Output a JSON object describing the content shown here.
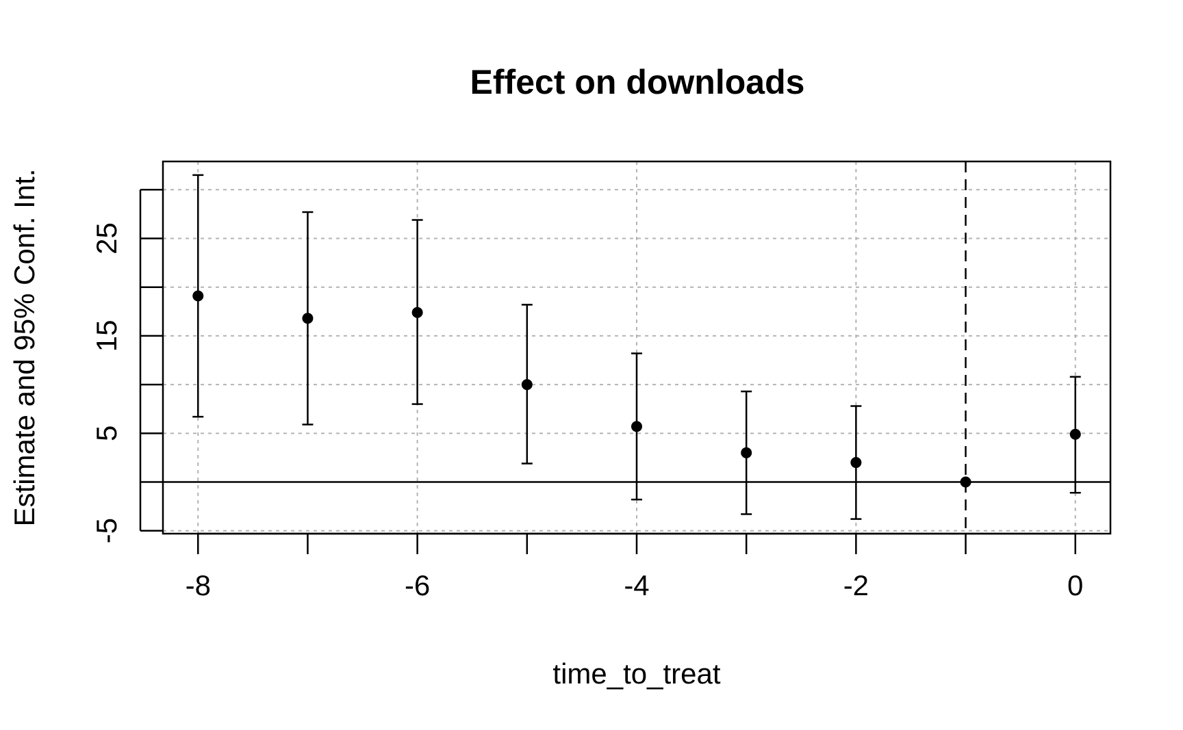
{
  "chart_data": {
    "type": "scatter",
    "title": "Effect on downloads",
    "xlabel": "time_to_treat",
    "ylabel": "Estimate and 95% Conf. Int.",
    "x_ticks": [
      -8,
      -6,
      -4,
      -2,
      0
    ],
    "x_tick_labels": [
      "-8",
      "-6",
      "-4",
      "-2",
      "0"
    ],
    "x_minor_ticks": [
      -8,
      -7,
      -6,
      -5,
      -4,
      -3,
      -2,
      -1,
      0
    ],
    "y_ticks": [
      -5,
      0,
      5,
      10,
      15,
      20,
      25,
      30
    ],
    "y_tick_labels": [
      "-5",
      "",
      "5",
      "",
      "15",
      "",
      "25",
      ""
    ],
    "y_grid": [
      -5,
      5,
      10,
      15,
      20,
      25,
      30
    ],
    "x_grid": [
      -8,
      -6,
      -4,
      -2,
      0
    ],
    "xlim": [
      -8.32,
      0.32
    ],
    "ylim": [
      -5.3,
      32.9
    ],
    "grid": true,
    "zero_line": 0,
    "reference_vline": -1,
    "points": [
      {
        "x": -8,
        "estimate": 19.1,
        "ci_low": 6.7,
        "ci_high": 31.5
      },
      {
        "x": -7,
        "estimate": 16.8,
        "ci_low": 5.9,
        "ci_high": 27.7
      },
      {
        "x": -6,
        "estimate": 17.4,
        "ci_low": 8.0,
        "ci_high": 26.9
      },
      {
        "x": -5,
        "estimate": 10.0,
        "ci_low": 1.9,
        "ci_high": 18.2
      },
      {
        "x": -4,
        "estimate": 5.7,
        "ci_low": -1.8,
        "ci_high": 13.2
      },
      {
        "x": -3,
        "estimate": 3.0,
        "ci_low": -3.3,
        "ci_high": 9.3
      },
      {
        "x": -2,
        "estimate": 2.0,
        "ci_low": -3.8,
        "ci_high": 7.8
      },
      {
        "x": -1,
        "estimate": 0.0,
        "ci_low": 0.0,
        "ci_high": 0.0
      },
      {
        "x": 0,
        "estimate": 4.9,
        "ci_low": -1.1,
        "ci_high": 10.8
      }
    ]
  }
}
